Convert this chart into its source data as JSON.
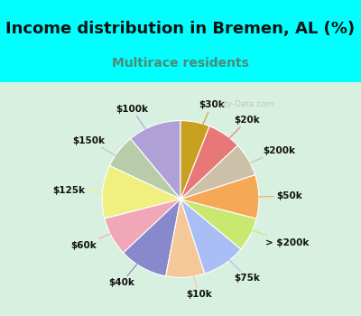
{
  "title": "Income distribution in Bremen, AL (%)",
  "subtitle": "Multirace residents",
  "watermark": "City-Data.com",
  "labels": [
    "$100k",
    "$150k",
    "$125k",
    "$60k",
    "$40k",
    "$10k",
    "$75k",
    "> $200k",
    "$50k",
    "$200k",
    "$20k",
    "$30k"
  ],
  "values": [
    11,
    7,
    11,
    8,
    10,
    8,
    9,
    7,
    9,
    7,
    7,
    6
  ],
  "colors": [
    "#b0a0d8",
    "#b8ccaa",
    "#f0ef80",
    "#f0a8b8",
    "#8888cc",
    "#f5c89a",
    "#a8bef5",
    "#c8e870",
    "#f5a855",
    "#ccc0a8",
    "#e87878",
    "#c8a020"
  ],
  "background_top": "#00ffff",
  "background_chart_color": "#d8f0e0",
  "title_fontsize": 13,
  "subtitle_fontsize": 10,
  "subtitle_color": "#508878",
  "label_fontsize": 7.5,
  "startangle": 90
}
